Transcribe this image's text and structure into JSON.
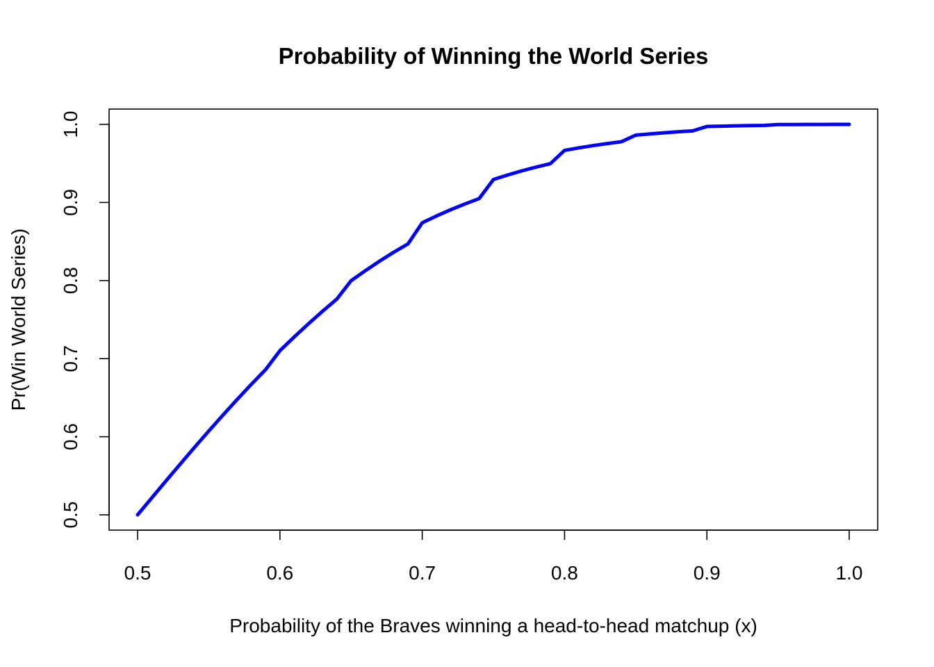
{
  "chart_data": {
    "type": "line",
    "title": "Probability of Winning the World Series",
    "xlabel": "Probability of the Braves winning a head-to-head matchup (x)",
    "ylabel": "Pr(Win World Series)",
    "xlim": [
      0.5,
      1.0
    ],
    "ylim": [
      0.5,
      1.0
    ],
    "x_ticks": [
      "0.5",
      "0.6",
      "0.7",
      "0.8",
      "0.9",
      "1.0"
    ],
    "y_ticks": [
      "0.5",
      "0.6",
      "0.7",
      "0.8",
      "0.9",
      "1.0"
    ],
    "grid": false,
    "legend": "none",
    "series": [
      {
        "color": "#0000ff",
        "x": [
          0.5,
          0.51,
          0.52,
          0.53,
          0.54,
          0.55,
          0.56,
          0.57,
          0.58,
          0.59,
          0.6,
          0.61,
          0.62,
          0.63,
          0.64,
          0.65,
          0.66,
          0.67,
          0.68,
          0.69,
          0.7,
          0.71,
          0.72,
          0.73,
          0.74,
          0.75,
          0.76,
          0.77,
          0.78,
          0.79,
          0.8,
          0.81,
          0.82,
          0.83,
          0.84,
          0.85,
          0.86,
          0.87,
          0.88,
          0.89,
          0.9,
          0.91,
          0.92,
          0.93,
          0.94,
          0.95,
          0.96,
          0.97,
          0.98,
          0.99,
          1.0
        ],
        "y": [
          0.5,
          0.5218,
          0.5436,
          0.5651,
          0.5864,
          0.6073,
          0.6278,
          0.6478,
          0.6673,
          0.6861,
          0.7102,
          0.7277,
          0.7446,
          0.7608,
          0.7763,
          0.7998,
          0.8126,
          0.8248,
          0.8363,
          0.847,
          0.874,
          0.8827,
          0.8907,
          0.8981,
          0.905,
          0.9294,
          0.9352,
          0.9405,
          0.9453,
          0.9497,
          0.9667,
          0.9699,
          0.9728,
          0.9754,
          0.9778,
          0.9862,
          0.9878,
          0.9892,
          0.9905,
          0.9917,
          0.9973,
          0.9977,
          0.9981,
          0.9984,
          0.9987,
          0.9998,
          0.9998,
          0.9999,
          0.9999,
          1.0,
          1.0
        ]
      }
    ]
  }
}
